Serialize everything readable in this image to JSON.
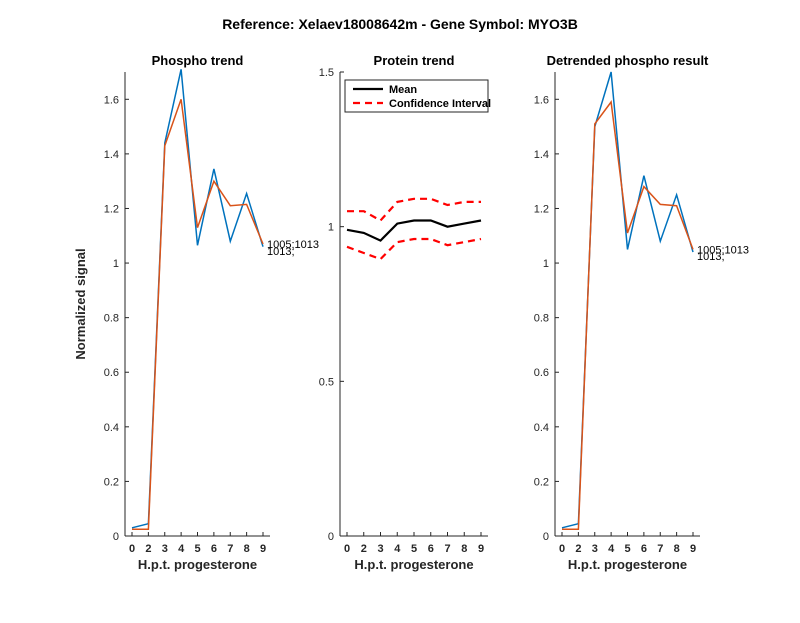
{
  "figure_title": "Reference:  Xelaev18008642m - Gene Symbol:  MYO3B",
  "colors": {
    "blue": "#0072BD",
    "orange": "#D95319",
    "black": "#000000",
    "red": "#FF0000"
  },
  "chart_data": [
    {
      "type": "line",
      "title": "Phospho trend",
      "xlabel": "H.p.t. progesterone",
      "ylabel": "Normalized signal",
      "xticks": [
        "0",
        "2",
        "3",
        "4",
        "5",
        "6",
        "7",
        "8",
        "9"
      ],
      "yticks": [
        "0",
        "0.2",
        "0.4",
        "0.6",
        "0.8",
        "1",
        "1.2",
        "1.4",
        "1.6"
      ],
      "ylim": [
        0,
        1.7
      ],
      "series": [
        {
          "values": [
            0.03,
            0.045,
            1.44,
            1.71,
            1.065,
            1.345,
            1.08,
            1.255,
            1.06
          ]
        },
        {
          "values": [
            0.025,
            0.025,
            1.43,
            1.6,
            1.13,
            1.3,
            1.21,
            1.215,
            1.07
          ]
        }
      ],
      "annotations": [
        {
          "text": "1005;1013",
          "x": 9,
          "y": 1.07
        },
        {
          "text": "1013;",
          "x": 9,
          "y": 1.045
        }
      ]
    },
    {
      "type": "line",
      "title": "Protein trend",
      "xlabel": "H.p.t. progesterone",
      "xticks": [
        "0",
        "2",
        "3",
        "4",
        "5",
        "6",
        "7",
        "8",
        "9"
      ],
      "yticks": [
        "0",
        "0.5",
        "1",
        "1.5"
      ],
      "ylim": [
        0,
        1.5
      ],
      "legend": {
        "position": "top-left",
        "entries": [
          "Mean",
          "Confidence Interval"
        ]
      },
      "series": [
        {
          "name": "Mean",
          "values": [
            0.99,
            0.98,
            0.955,
            1.01,
            1.02,
            1.02,
            1.0,
            1.01,
            1.02
          ]
        },
        {
          "name": "Confidence Interval",
          "values": [
            1.05,
            1.05,
            1.02,
            1.08,
            1.09,
            1.09,
            1.07,
            1.08,
            1.08
          ]
        },
        {
          "name": "Confidence Interval",
          "values": [
            0.935,
            0.915,
            0.895,
            0.95,
            0.96,
            0.96,
            0.94,
            0.95,
            0.96
          ]
        }
      ]
    },
    {
      "type": "line",
      "title": "Detrended phospho result",
      "xlabel": "H.p.t. progesterone",
      "xticks": [
        "0",
        "2",
        "3",
        "4",
        "5",
        "6",
        "7",
        "8",
        "9"
      ],
      "yticks": [
        "0",
        "0.2",
        "0.4",
        "0.6",
        "0.8",
        "1",
        "1.2",
        "1.4",
        "1.6"
      ],
      "ylim": [
        0,
        1.7
      ],
      "series": [
        {
          "values": [
            0.03,
            0.045,
            1.5,
            1.7,
            1.05,
            1.32,
            1.08,
            1.25,
            1.04
          ]
        },
        {
          "values": [
            0.025,
            0.025,
            1.51,
            1.59,
            1.11,
            1.28,
            1.215,
            1.21,
            1.05
          ]
        }
      ],
      "annotations": [
        {
          "text": "1005;1013",
          "x": 9,
          "y": 1.05
        },
        {
          "text": "1013;",
          "x": 9,
          "y": 1.025
        }
      ]
    }
  ]
}
